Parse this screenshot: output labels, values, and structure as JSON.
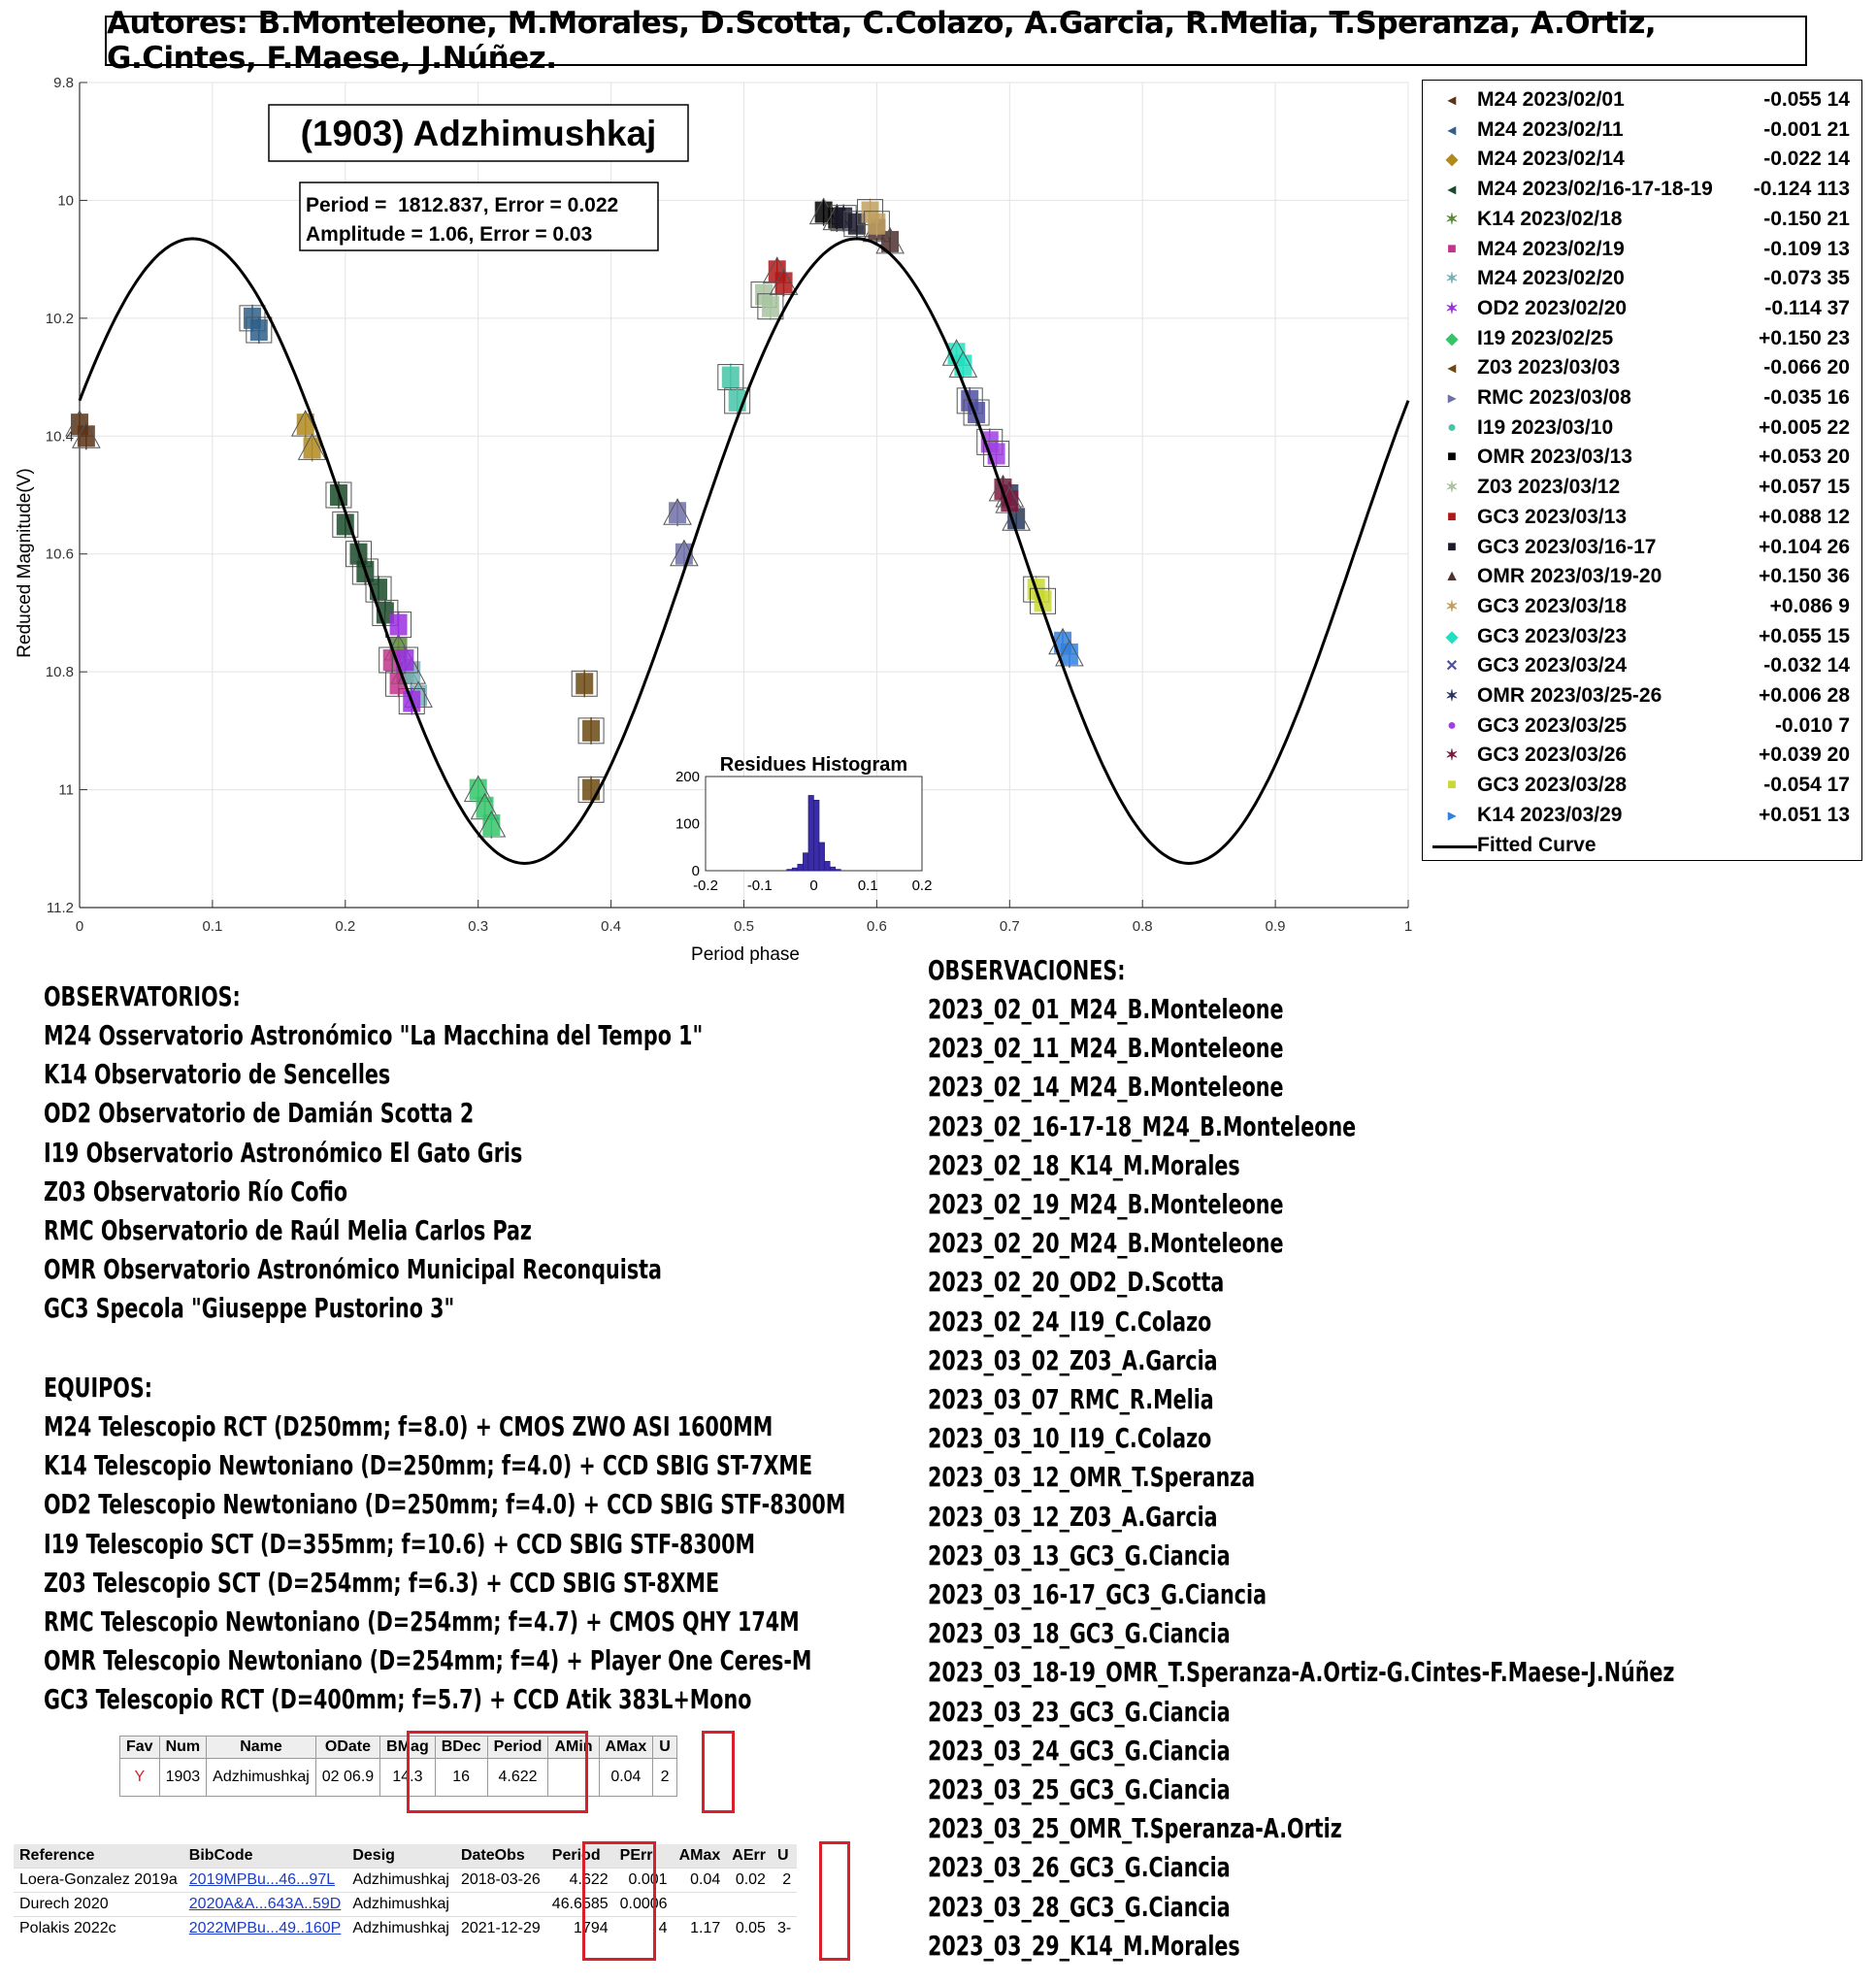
{
  "authors": "Autores: B.Monteleone, M.Morales, D.Scotta, C.Colazo, A.Garcia, R.Melia, T.Speranza, A.Ortiz, G.Cintes, F.Maese, J.Núñez.",
  "chart_data": {
    "type": "scatter",
    "title": "(1903) Adzhimushkaj",
    "fit_text": [
      "Period =  1812.837, Error = 0.022",
      "Amplitude = 1.06, Error = 0.03"
    ],
    "xlabel": "Period phase",
    "ylabel": "Reduced Magnitude(V)",
    "xlim": [
      0,
      1
    ],
    "ylim": [
      9.8,
      11.2
    ],
    "y_reversed": true,
    "grid": true,
    "xticks": [
      "0",
      "0.1",
      "0.2",
      "0.3",
      "0.4",
      "0.5",
      "0.6",
      "0.7",
      "0.8",
      "0.9",
      "1"
    ],
    "yticks": [
      "9.8",
      "10",
      "10.2",
      "10.4",
      "10.6",
      "10.8",
      "11",
      "11.2"
    ],
    "fitted_curve": {
      "name": "Fitted Curve",
      "mean": 10.595,
      "amplitude": 0.53,
      "cycles_per_phase": 2,
      "peak_phase": 0.085
    },
    "series": [
      {
        "name": "M24 2023/02/01",
        "offset": "-0.055",
        "n": "14",
        "color": "#5a3418",
        "marker": "◂",
        "x": [
          0.0,
          0.005
        ],
        "y": [
          10.38,
          10.4
        ]
      },
      {
        "name": "M24 2023/02/11",
        "offset": "-0.001",
        "n": "21",
        "color": "#2f5f8a",
        "marker": "◂",
        "x": [
          0.13,
          0.135
        ],
        "y": [
          10.2,
          10.22
        ]
      },
      {
        "name": "M24 2023/02/14",
        "offset": "-0.022",
        "n": "14",
        "color": "#b08a1e",
        "marker": "◆",
        "x": [
          0.17,
          0.175
        ],
        "y": [
          10.38,
          10.42
        ]
      },
      {
        "name": "M24 2023/02/16-17-18-19",
        "offset": "-0.124",
        "n": "113",
        "color": "#1b4a2a",
        "marker": "◂",
        "x": [
          0.195,
          0.2,
          0.21,
          0.215,
          0.225,
          0.23
        ],
        "y": [
          10.5,
          10.55,
          10.6,
          10.63,
          10.66,
          10.7
        ]
      },
      {
        "name": "K14 2023/02/18",
        "offset": "-0.150",
        "n": "21",
        "color": "#5a8a3a",
        "marker": "✶",
        "x": [
          0.24,
          0.245
        ],
        "y": [
          10.76,
          10.8
        ]
      },
      {
        "name": "M24 2023/02/19",
        "offset": "-0.109",
        "n": "13",
        "color": "#c2358a",
        "marker": "■",
        "x": [
          0.235,
          0.24
        ],
        "y": [
          10.78,
          10.82
        ]
      },
      {
        "name": "M24 2023/02/20",
        "offset": "-0.073",
        "n": "35",
        "color": "#7ab0b8",
        "marker": "✶",
        "x": [
          0.25,
          0.255
        ],
        "y": [
          10.8,
          10.84
        ]
      },
      {
        "name": "OD2 2023/02/20",
        "offset": "-0.114",
        "n": "37",
        "color": "#9b30e0",
        "marker": "✶",
        "x": [
          0.24,
          0.245,
          0.25
        ],
        "y": [
          10.72,
          10.78,
          10.85
        ]
      },
      {
        "name": "I19 2023/02/25",
        "offset": "+0.150",
        "n": "23",
        "color": "#35c46a",
        "marker": "◆",
        "x": [
          0.3,
          0.305,
          0.31
        ],
        "y": [
          11.0,
          11.03,
          11.06
        ]
      },
      {
        "name": "Z03 2023/03/03",
        "offset": "-0.066",
        "n": "20",
        "color": "#6b4a14",
        "marker": "◂",
        "x": [
          0.38,
          0.385,
          0.385
        ],
        "y": [
          10.82,
          10.9,
          11.0
        ]
      },
      {
        "name": "RMC 2023/03/08",
        "offset": "-0.035",
        "n": "16",
        "color": "#7070a8",
        "marker": "▸",
        "x": [
          0.45,
          0.455
        ],
        "y": [
          10.53,
          10.6
        ]
      },
      {
        "name": "I19 2023/03/10",
        "offset": "+0.005",
        "n": "22",
        "color": "#46c4a8",
        "marker": "●",
        "x": [
          0.49,
          0.495
        ],
        "y": [
          10.3,
          10.34
        ]
      },
      {
        "name": "OMR 2023/03/13",
        "offset": "+0.053",
        "n": "20",
        "color": "#000000",
        "marker": "■",
        "x": [
          0.56,
          0.57
        ],
        "y": [
          10.02,
          10.03
        ]
      },
      {
        "name": "Z03 2023/03/12",
        "offset": "+0.057",
        "n": "15",
        "color": "#a8c4a0",
        "marker": "✶",
        "x": [
          0.515,
          0.52
        ],
        "y": [
          10.16,
          10.18
        ]
      },
      {
        "name": "GC3 2023/03/13",
        "offset": "+0.088",
        "n": "12",
        "color": "#b01818",
        "marker": "■",
        "x": [
          0.525,
          0.53
        ],
        "y": [
          10.12,
          10.14
        ]
      },
      {
        "name": "GC3 2023/03/16-17",
        "offset": "+0.104",
        "n": "26",
        "color": "#1a1a2a",
        "marker": "■",
        "x": [
          0.575,
          0.585
        ],
        "y": [
          10.03,
          10.04
        ]
      },
      {
        "name": "OMR 2023/03/19-20",
        "offset": "+0.150",
        "n": "36",
        "color": "#503030",
        "marker": "▲",
        "x": [
          0.6,
          0.61
        ],
        "y": [
          10.05,
          10.07
        ]
      },
      {
        "name": "GC3 2023/03/18",
        "offset": "+0.086",
        "n": "9",
        "color": "#c0a060",
        "marker": "✶",
        "x": [
          0.595,
          0.6
        ],
        "y": [
          10.02,
          10.04
        ]
      },
      {
        "name": "GC3 2023/03/23",
        "offset": "+0.055",
        "n": "15",
        "color": "#20e0c0",
        "marker": "◆",
        "x": [
          0.66,
          0.665
        ],
        "y": [
          10.26,
          10.28
        ]
      },
      {
        "name": "GC3 2023/03/24",
        "offset": "-0.032",
        "n": "14",
        "color": "#5050a0",
        "marker": "✕",
        "x": [
          0.67,
          0.675
        ],
        "y": [
          10.34,
          10.36
        ]
      },
      {
        "name": "OMR 2023/03/25-26",
        "offset": "+0.006",
        "n": "28",
        "color": "#283860",
        "marker": "✶",
        "x": [
          0.7,
          0.705
        ],
        "y": [
          10.5,
          10.54
        ]
      },
      {
        "name": "GC3 2023/03/25",
        "offset": "-0.010",
        "n": "7",
        "color": "#a040e0",
        "marker": "●",
        "x": [
          0.685,
          0.69
        ],
        "y": [
          10.41,
          10.43
        ]
      },
      {
        "name": "GC3 2023/03/26",
        "offset": "+0.039",
        "n": "20",
        "color": "#7a1a40",
        "marker": "✶",
        "x": [
          0.695,
          0.7
        ],
        "y": [
          10.49,
          10.51
        ]
      },
      {
        "name": "GC3 2023/03/28",
        "offset": "-0.054",
        "n": "17",
        "color": "#c8d830",
        "marker": "■",
        "x": [
          0.72,
          0.725
        ],
        "y": [
          10.66,
          10.68
        ]
      },
      {
        "name": "K14 2023/03/29",
        "offset": "+0.051",
        "n": "13",
        "color": "#3080e0",
        "marker": "▸",
        "x": [
          0.74,
          0.745
        ],
        "y": [
          10.75,
          10.77
        ]
      }
    ],
    "histogram": {
      "title": "Residues Histogram",
      "xlim": [
        -0.2,
        0.2
      ],
      "ylim": [
        0,
        200
      ],
      "xticks": [
        "-0.2",
        "-0.1",
        "0",
        "0.1",
        "0.2"
      ],
      "yticks": [
        "0",
        "100",
        "200"
      ],
      "bin_width": 0.01,
      "bin_centers": [
        -0.045,
        -0.035,
        -0.025,
        -0.015,
        -0.005,
        0.005,
        0.015,
        0.025,
        0.035,
        0.045
      ],
      "counts": [
        3,
        6,
        14,
        38,
        160,
        150,
        60,
        20,
        8,
        3
      ]
    }
  },
  "observatorios": {
    "heading": "OBSERVATORIOS:",
    "lines": [
      "M24 Osservatorio Astronómico \"La Macchina del Tempo 1\"",
      "K14 Observatorio de Sencelles",
      "OD2 Observatorio de Damián Scotta 2",
      "I19 Observatorio Astronómico El Gato Gris",
      "Z03 Observatorio Río Cofio",
      "RMC Observatorio de Raúl Melia Carlos Paz",
      "OMR Observatorio Astronómico Municipal Reconquista",
      "GC3 Specola \"Giuseppe Pustorino 3\""
    ]
  },
  "equipos": {
    "heading": "EQUIPOS:",
    "lines": [
      "M24 Telescopio RCT (D250mm; f=8.0) + CMOS ZWO ASI 1600MM",
      "K14 Telescopio Newtoniano (D=250mm; f=4.0) + CCD SBIG ST-7XME",
      "OD2 Telescopio Newtoniano (D=250mm; f=4.0) + CCD SBIG STF-8300M",
      "I19 Telescopio SCT (D=355mm; f=10.6) + CCD SBIG STF-8300M",
      "Z03 Telescopio SCT (D=254mm; f=6.3) + CCD SBIG ST-8XME",
      "RMC Telescopio Newtoniano (D=254mm; f=4.7) + CMOS QHY 174M",
      "OMR Telescopio Newtoniano (D=254mm; f=4) + Player One Ceres-M",
      "GC3 Telescopio RCT (D=400mm; f=5.7) + CCD Atik 383L+Mono"
    ]
  },
  "observaciones": {
    "heading": "OBSERVACIONES:",
    "lines": [
      "2023_02_01_M24_B.Monteleone",
      "2023_02_11_M24_B.Monteleone",
      "2023_02_14_M24_B.Monteleone",
      "2023_02_16-17-18_M24_B.Monteleone",
      "2023_02_18_K14_M.Morales",
      "2023_02_19_M24_B.Monteleone",
      "2023_02_20_M24_B.Monteleone",
      "2023_02_20_OD2_D.Scotta",
      "2023_02_24_I19_C.Colazo",
      "2023_03_02_Z03_A.Garcia",
      "2023_03_07_RMC_R.Melia",
      "2023_03_10_I19_C.Colazo",
      "2023_03_12_OMR_T.Speranza",
      "2023_03_12_Z03_A.Garcia",
      "2023_03_13_GC3_G.Ciancia",
      "2023_03_16-17_GC3_G.Ciancia",
      "2023_03_18_GC3_G.Ciancia",
      "2023_03_18-19_OMR_T.Speranza-A.Ortiz-G.Cintes-F.Maese-J.Núñez",
      "2023_03_23_GC3_G.Ciancia",
      "2023_03_24_GC3_G.Ciancia",
      "2023_03_25_GC3_G.Ciancia",
      "2023_03_25_OMR_T.Speranza-A.Ortiz",
      "2023_03_26_GC3_G.Ciancia",
      "2023_03_28_GC3_G.Ciancia",
      "2023_03_29_K14_M.Morales"
    ]
  },
  "lcdb_table": {
    "headers": [
      "Fav",
      "Num",
      "Name",
      "ODate",
      "BMag",
      "BDec",
      "Period",
      "AMin",
      "AMax",
      "U"
    ],
    "row": [
      "Y",
      "1903",
      "Adzhimushkaj",
      "02 06.9",
      "14.3",
      "16",
      "4.622",
      "",
      "0.04",
      "2"
    ]
  },
  "ref_table": {
    "headers": [
      "Reference",
      "BibCode",
      "Desig",
      "DateObs",
      "Period",
      "PErr",
      "AMax",
      "AErr",
      "U"
    ],
    "rows": [
      [
        "Loera-Gonzalez 2019a",
        "2019MPBu...46...97L",
        "Adzhimushkaj",
        "2018-03-26",
        "4.622",
        "0.001",
        "0.04",
        "0.02",
        "2"
      ],
      [
        "Durech 2020",
        "2020A&A...643A..59D",
        "Adzhimushkaj",
        "",
        "46.6585",
        "0.0006",
        "",
        "",
        ""
      ],
      [
        "Polakis 2022c",
        "2022MPBu...49..160P",
        "Adzhimushkaj",
        "2021-12-29",
        "1794",
        "4",
        "1.17",
        "0.05",
        "3-"
      ]
    ]
  }
}
